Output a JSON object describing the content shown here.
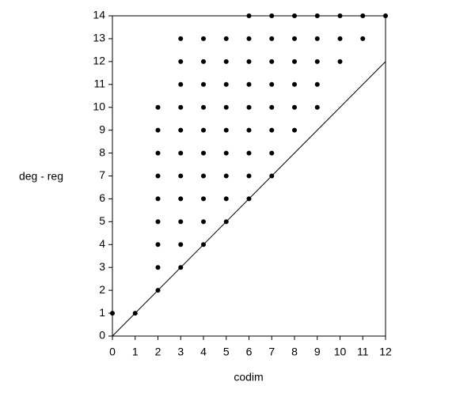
{
  "chart_data": {
    "type": "scatter",
    "x_label": "codim",
    "y_label": "deg - reg",
    "x": [
      0,
      1,
      2,
      2,
      3,
      2,
      3,
      4,
      2,
      3,
      4,
      5,
      2,
      3,
      4,
      5,
      6,
      2,
      3,
      4,
      5,
      6,
      7,
      2,
      3,
      4,
      5,
      6,
      7,
      2,
      3,
      4,
      5,
      6,
      7,
      8,
      2,
      3,
      4,
      5,
      6,
      7,
      8,
      9,
      3,
      4,
      5,
      6,
      7,
      8,
      9,
      3,
      4,
      5,
      6,
      7,
      8,
      9,
      10,
      3,
      4,
      5,
      6,
      7,
      8,
      9,
      10,
      11,
      6,
      7,
      8,
      9,
      10,
      11,
      12
    ],
    "y": [
      1,
      1,
      2,
      3,
      3,
      4,
      4,
      4,
      5,
      5,
      5,
      5,
      6,
      6,
      6,
      6,
      6,
      7,
      7,
      7,
      7,
      7,
      7,
      8,
      8,
      8,
      8,
      8,
      8,
      9,
      9,
      9,
      9,
      9,
      9,
      9,
      10,
      10,
      10,
      10,
      10,
      10,
      10,
      10,
      11,
      11,
      11,
      11,
      11,
      11,
      11,
      12,
      12,
      12,
      12,
      12,
      12,
      12,
      12,
      13,
      13,
      13,
      13,
      13,
      13,
      13,
      13,
      13,
      14,
      14,
      14,
      14,
      14,
      14,
      14
    ],
    "color": "#000000",
    "xlim": [
      0,
      12
    ],
    "ylim": [
      0,
      14
    ],
    "xticks": [
      0,
      1,
      2,
      3,
      4,
      5,
      6,
      7,
      8,
      9,
      10,
      11,
      12
    ],
    "yticks": [
      0,
      1,
      2,
      3,
      4,
      5,
      6,
      7,
      8,
      9,
      10,
      11,
      12,
      13,
      14
    ],
    "diagonal": true,
    "grid": false
  }
}
